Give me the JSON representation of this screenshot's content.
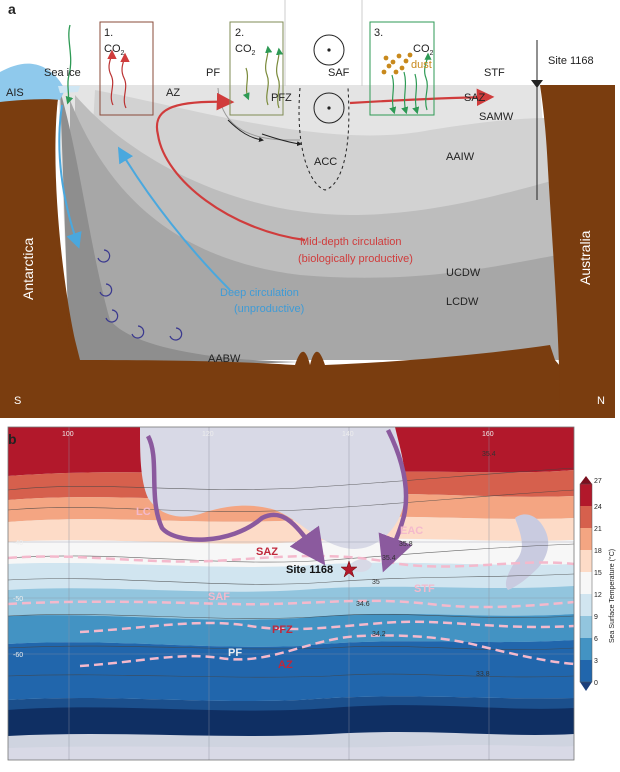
{
  "panel_a": {
    "letter": "a",
    "boxes": [
      {
        "num": "1.",
        "gas": "CO",
        "sub": "2"
      },
      {
        "num": "2.",
        "gas": "CO",
        "sub": "2"
      },
      {
        "num": "3.",
        "gas": "CO",
        "sub": "2",
        "extra": "dust"
      }
    ],
    "labels": {
      "sea_ice": "Sea ice",
      "ais": "AIS",
      "pf": "PF",
      "saf": "SAF",
      "stf": "STF",
      "site": "Site 1168",
      "az": "AZ",
      "pfz": "PFZ",
      "saz": "SAZ",
      "samw": "SAMW",
      "aaiw": "AAIW",
      "acc": "ACC",
      "ucdw": "UCDW",
      "lcdw": "LCDW",
      "aabw": "AABW",
      "antarctica": "Antarctica",
      "australia": "Australia",
      "south": "S",
      "north": "N"
    },
    "mid_depth": [
      "Mid-depth circulation",
      "(biologically productive)"
    ],
    "deep": [
      "Deep circulation",
      "(unproductive)"
    ],
    "colors": {
      "mid_depth": "#d03c3c",
      "deep": "#3f9bd6",
      "land": "#7a3d0f"
    }
  },
  "panel_b": {
    "letter": "b",
    "lon_ticks": [
      "100",
      "120",
      "140",
      "160"
    ],
    "lat_ticks": [
      "-40",
      "-50",
      "-60"
    ],
    "labels": {
      "lc": "LC",
      "eac": "EAC",
      "saz": "SAZ",
      "saf": "SAF",
      "stf": "STF",
      "pfz": "PFZ",
      "pf": "PF",
      "az": "AZ",
      "site": "Site 1168"
    },
    "salinity_labels": [
      "35.4",
      "35.8",
      "35.4",
      "35",
      "34.6",
      "34.2",
      "33.8"
    ],
    "colorbar": {
      "title": "Sea Surface Temperature (°C)",
      "ticks": [
        "27",
        "24",
        "21",
        "18",
        "15",
        "12",
        "9",
        "6",
        "3",
        "0"
      ],
      "colors": [
        "#b2182b",
        "#d6604d",
        "#f4a582",
        "#fddbc7",
        "#f7f7f7",
        "#d1e5f0",
        "#92c5de",
        "#4393c3",
        "#2166ac",
        "#1b4f8c"
      ]
    }
  }
}
